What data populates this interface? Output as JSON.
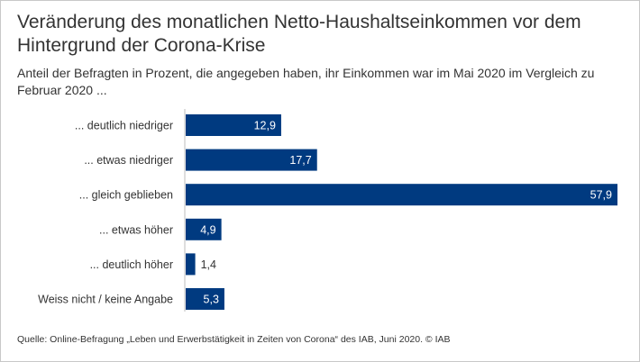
{
  "chart_data": {
    "type": "bar",
    "orientation": "horizontal",
    "title": "Veränderung des monatlichen Netto-Haushaltseinkommen vor dem Hintergrund der Corona-Krise",
    "subtitle": "Anteil der Befragten in Prozent, die angegeben haben, ihr Einkommen war im Mai 2020 im Vergleich zu Februar 2020 ...",
    "categories": [
      "... deutlich niedriger",
      "... etwas niedriger",
      "... gleich geblieben",
      "... etwas höher",
      "... deutlich höher",
      "Weiss nicht / keine Angabe"
    ],
    "values": [
      12.9,
      17.7,
      57.9,
      4.9,
      1.4,
      5.3
    ],
    "value_labels": [
      "12,9",
      "17,7",
      "57,9",
      "4,9",
      "1,4",
      "5,3"
    ],
    "xlim": [
      0,
      57.9
    ],
    "grid": false,
    "bar_color": "#003a80",
    "label_color_inside": "#ffffff",
    "label_color_outside": "#333333"
  },
  "source": "Quelle: Online-Befragung „Leben und Erwerbstätigkeit in Zeiten von Corona“ des IAB, Juni 2020. © IAB"
}
